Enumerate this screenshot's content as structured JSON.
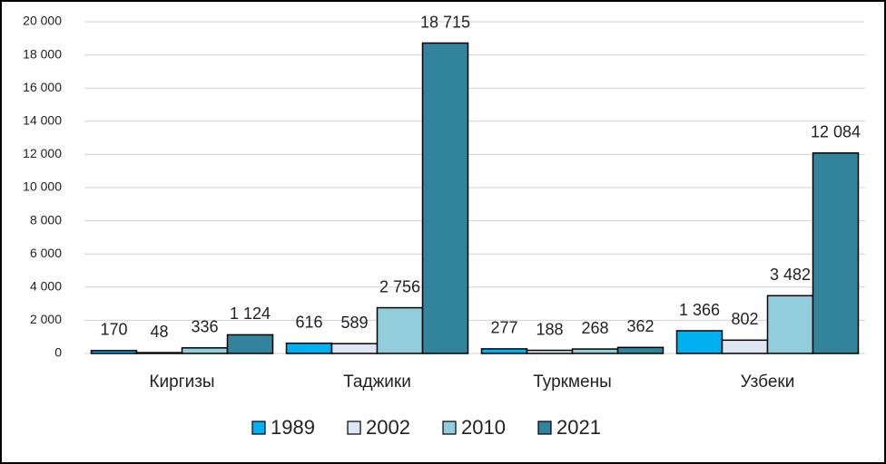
{
  "chart_data": {
    "type": "bar",
    "categories": [
      "Киргизы",
      "Таджики",
      "Туркмены",
      "Узбеки"
    ],
    "series": [
      {
        "name": "1989",
        "color": "#00b0f0",
        "values": [
          170,
          616,
          277,
          1366
        ],
        "value_labels": [
          "170",
          "616",
          "277",
          "1 366"
        ]
      },
      {
        "name": "2002",
        "color": "#dee6f2",
        "values": [
          48,
          589,
          188,
          802
        ],
        "value_labels": [
          "48",
          "589",
          "188",
          "802"
        ]
      },
      {
        "name": "2010",
        "color": "#92cddc",
        "values": [
          336,
          2756,
          268,
          3482
        ],
        "value_labels": [
          "336",
          "2 756",
          "268",
          "3 482"
        ]
      },
      {
        "name": "2021",
        "color": "#31849b",
        "values": [
          1124,
          18715,
          362,
          12084
        ],
        "value_labels": [
          "1 124",
          "18 715",
          "362",
          "12 084"
        ]
      }
    ],
    "ylim": [
      0,
      20000
    ],
    "yticks": [
      0,
      {
        "value": 2000,
        "label": "2 000"
      },
      {
        "value": 4000,
        "label": "4 000"
      },
      {
        "value": 6000,
        "label": "6 000"
      },
      {
        "value": 8000,
        "label": "8 000"
      },
      {
        "value": 10000,
        "label": "10 000"
      },
      {
        "value": 12000,
        "label": "12 000"
      },
      {
        "value": 14000,
        "label": "14 000"
      },
      {
        "value": 16000,
        "label": "16 000"
      },
      {
        "value": 18000,
        "label": "18 000"
      },
      {
        "value": 20000,
        "label": "20 000"
      }
    ],
    "grid": true,
    "legend": "bottom"
  }
}
